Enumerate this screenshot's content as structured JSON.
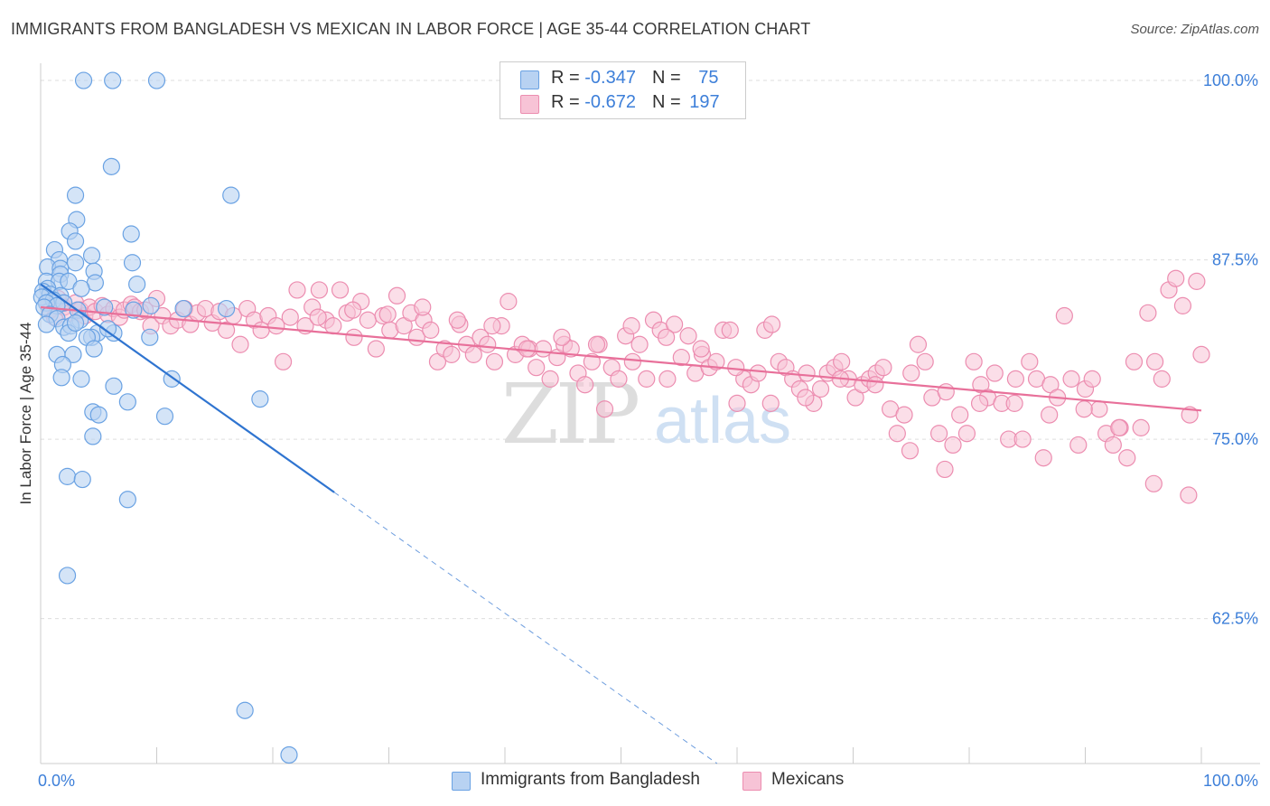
{
  "title": "IMMIGRANTS FROM BANGLADESH VS MEXICAN IN LABOR FORCE | AGE 35-44 CORRELATION CHART",
  "source": "Source: ZipAtlas.com",
  "watermark": {
    "zip": "ZIP",
    "atlas": "atlas"
  },
  "colors": {
    "blue_fill": "#b8d2f2",
    "blue_stroke": "#6aa2e3",
    "blue_line": "#2f74d0",
    "pink_fill": "#f7c3d6",
    "pink_stroke": "#ec8db0",
    "pink_line": "#e8709a",
    "tick_label": "#3d7fd9",
    "grid": "#dddddd"
  },
  "legend": {
    "rows": [
      {
        "r_label": "R = ",
        "r_value": "-0.347",
        "n_label": "N = ",
        "n_value": "75"
      },
      {
        "r_label": "R = ",
        "r_value": "-0.672",
        "n_label": "N = ",
        "n_value": "197"
      }
    ]
  },
  "chart_data": {
    "type": "scatter",
    "title": "IMMIGRANTS FROM BANGLADESH VS MEXICAN IN LABOR FORCE | AGE 35-44 CORRELATION CHART",
    "xlabel": "",
    "ylabel": "In Labor Force | Age 35-44",
    "xlim": [
      0,
      100
    ],
    "ylim": [
      52.4,
      101.2
    ],
    "x_tick_labels": [
      {
        "value": 0,
        "label": "0.0%"
      },
      {
        "value": 100,
        "label": "100.0%"
      }
    ],
    "x_minor_ticks": [
      10,
      20,
      30,
      40,
      50,
      60,
      70,
      80,
      90,
      100
    ],
    "y_ticks": [
      {
        "value": 100,
        "label": "100.0%"
      },
      {
        "value": 87.5,
        "label": "87.5%"
      },
      {
        "value": 75,
        "label": "75.0%"
      },
      {
        "value": 62.5,
        "label": "62.5%"
      }
    ],
    "grid": true,
    "series": [
      {
        "name": "Immigrants from Bangladesh",
        "color": "#6aa2e3",
        "R": -0.347,
        "N": 75,
        "trend": {
          "x0": 0,
          "y0": 85.8,
          "x1": 25.3,
          "y1": 71.3,
          "dashed_to_x": 100
        },
        "points": [
          [
            3.7,
            100
          ],
          [
            6.2,
            100
          ],
          [
            10.0,
            100
          ],
          [
            6.1,
            94
          ],
          [
            3.0,
            92
          ],
          [
            16.4,
            92
          ],
          [
            3.1,
            90.3
          ],
          [
            2.5,
            89.5
          ],
          [
            7.8,
            89.3
          ],
          [
            3.0,
            88.8
          ],
          [
            1.2,
            88.2
          ],
          [
            4.4,
            87.8
          ],
          [
            1.6,
            87.5
          ],
          [
            3.0,
            87.3
          ],
          [
            7.9,
            87.3
          ],
          [
            0.6,
            87.0
          ],
          [
            1.7,
            86.9
          ],
          [
            4.6,
            86.7
          ],
          [
            1.7,
            86.5
          ],
          [
            0.5,
            86.0
          ],
          [
            1.6,
            86.0
          ],
          [
            2.4,
            86.0
          ],
          [
            4.7,
            85.9
          ],
          [
            8.3,
            85.8
          ],
          [
            0.6,
            85.5
          ],
          [
            3.5,
            85.5
          ],
          [
            0.2,
            85.3
          ],
          [
            0.8,
            85.1
          ],
          [
            1.7,
            85.0
          ],
          [
            0.1,
            84.9
          ],
          [
            1.1,
            84.7
          ],
          [
            0.5,
            84.5
          ],
          [
            2.0,
            84.5
          ],
          [
            1.4,
            84.3
          ],
          [
            0.3,
            84.2
          ],
          [
            3.2,
            84.0
          ],
          [
            8.0,
            84.0
          ],
          [
            0.8,
            83.7
          ],
          [
            1.4,
            83.4
          ],
          [
            3.4,
            83.3
          ],
          [
            0.5,
            83.0
          ],
          [
            2.0,
            82.8
          ],
          [
            2.6,
            82.9
          ],
          [
            2.4,
            82.4
          ],
          [
            6.3,
            82.4
          ],
          [
            4.9,
            82.4
          ],
          [
            5.8,
            82.7
          ],
          [
            4.4,
            82.1
          ],
          [
            4.0,
            82.1
          ],
          [
            9.4,
            82.1
          ],
          [
            4.6,
            81.3
          ],
          [
            1.4,
            80.9
          ],
          [
            2.8,
            80.9
          ],
          [
            1.9,
            80.2
          ],
          [
            1.8,
            79.3
          ],
          [
            3.5,
            79.2
          ],
          [
            11.3,
            79.2
          ],
          [
            6.3,
            78.7
          ],
          [
            7.5,
            77.6
          ],
          [
            18.9,
            77.8
          ],
          [
            4.5,
            76.9
          ],
          [
            5.0,
            76.7
          ],
          [
            10.7,
            76.6
          ],
          [
            4.5,
            75.2
          ],
          [
            2.3,
            72.4
          ],
          [
            3.6,
            72.2
          ],
          [
            7.5,
            70.8
          ],
          [
            2.3,
            65.5
          ],
          [
            17.6,
            56.1
          ],
          [
            21.4,
            53.0
          ],
          [
            12.3,
            84.1
          ],
          [
            16.0,
            84.1
          ],
          [
            5.5,
            84.2
          ],
          [
            3.0,
            83.1
          ],
          [
            9.5,
            84.3
          ]
        ]
      },
      {
        "name": "Mexicans",
        "color": "#ec8db0",
        "R": -0.672,
        "N": 197,
        "trend": {
          "x0": 0,
          "y0": 84.2,
          "x1": 100,
          "y1": 77.0
        },
        "points": [
          [
            0.5,
            84.5
          ],
          [
            0.8,
            84.0
          ],
          [
            1.2,
            83.5
          ],
          [
            1.5,
            84.8
          ],
          [
            2.0,
            84.2
          ],
          [
            2.5,
            83.8
          ],
          [
            3.0,
            84.5
          ],
          [
            3.4,
            84.0
          ],
          [
            3.8,
            83.6
          ],
          [
            4.2,
            84.2
          ],
          [
            4.7,
            83.9
          ],
          [
            5.3,
            84.3
          ],
          [
            5.8,
            83.7
          ],
          [
            6.3,
            84.1
          ],
          [
            6.8,
            83.5
          ],
          [
            7.2,
            84.0
          ],
          [
            7.8,
            84.4
          ],
          [
            8.1,
            84.2
          ],
          [
            8.6,
            83.9
          ],
          [
            9.0,
            84.0
          ],
          [
            9.5,
            82.9
          ],
          [
            10.0,
            84.8
          ],
          [
            10.5,
            83.6
          ],
          [
            11.2,
            82.9
          ],
          [
            11.8,
            83.3
          ],
          [
            12.4,
            84.1
          ],
          [
            12.9,
            83.0
          ],
          [
            13.5,
            83.8
          ],
          [
            14.2,
            84.1
          ],
          [
            14.8,
            83.1
          ],
          [
            15.4,
            83.9
          ],
          [
            16.0,
            82.6
          ],
          [
            16.6,
            83.6
          ],
          [
            17.2,
            81.6
          ],
          [
            17.8,
            84.1
          ],
          [
            18.4,
            83.3
          ],
          [
            19.0,
            82.6
          ],
          [
            19.6,
            83.6
          ],
          [
            20.3,
            82.9
          ],
          [
            20.9,
            80.4
          ],
          [
            21.5,
            83.5
          ],
          [
            22.1,
            85.4
          ],
          [
            22.8,
            82.9
          ],
          [
            23.4,
            84.2
          ],
          [
            24.0,
            85.4
          ],
          [
            24.6,
            83.3
          ],
          [
            25.2,
            82.9
          ],
          [
            25.8,
            85.4
          ],
          [
            26.4,
            83.8
          ],
          [
            27.0,
            82.1
          ],
          [
            27.6,
            84.6
          ],
          [
            28.2,
            83.3
          ],
          [
            28.9,
            81.3
          ],
          [
            29.5,
            83.6
          ],
          [
            30.1,
            82.6
          ],
          [
            30.7,
            85.0
          ],
          [
            31.3,
            82.9
          ],
          [
            31.9,
            83.8
          ],
          [
            32.4,
            82.1
          ],
          [
            33.0,
            83.3
          ],
          [
            33.6,
            82.6
          ],
          [
            34.2,
            80.4
          ],
          [
            34.8,
            81.3
          ],
          [
            35.4,
            80.9
          ],
          [
            36.1,
            83.0
          ],
          [
            36.7,
            81.6
          ],
          [
            37.3,
            80.9
          ],
          [
            37.9,
            82.1
          ],
          [
            38.5,
            81.6
          ],
          [
            39.1,
            80.4
          ],
          [
            39.7,
            82.9
          ],
          [
            40.3,
            84.6
          ],
          [
            40.9,
            80.9
          ],
          [
            41.5,
            81.6
          ],
          [
            42.1,
            81.3
          ],
          [
            42.7,
            80.0
          ],
          [
            43.3,
            81.3
          ],
          [
            43.9,
            79.2
          ],
          [
            44.5,
            80.7
          ],
          [
            45.1,
            81.6
          ],
          [
            45.7,
            81.3
          ],
          [
            46.3,
            79.6
          ],
          [
            46.9,
            78.8
          ],
          [
            47.5,
            80.4
          ],
          [
            48.1,
            81.6
          ],
          [
            48.6,
            77.1
          ],
          [
            49.2,
            80.0
          ],
          [
            49.8,
            79.2
          ],
          [
            50.4,
            82.2
          ],
          [
            51.0,
            80.4
          ],
          [
            51.6,
            81.6
          ],
          [
            52.2,
            79.2
          ],
          [
            52.8,
            83.3
          ],
          [
            53.4,
            82.6
          ],
          [
            54.0,
            79.2
          ],
          [
            54.6,
            83.0
          ],
          [
            55.2,
            80.7
          ],
          [
            55.8,
            82.2
          ],
          [
            56.4,
            79.6
          ],
          [
            57.0,
            80.9
          ],
          [
            57.6,
            80.0
          ],
          [
            58.2,
            80.4
          ],
          [
            58.8,
            82.6
          ],
          [
            59.4,
            82.6
          ],
          [
            60.0,
            77.5
          ],
          [
            60.6,
            79.2
          ],
          [
            61.2,
            78.8
          ],
          [
            61.8,
            79.6
          ],
          [
            62.4,
            82.6
          ],
          [
            63.0,
            83.0
          ],
          [
            63.6,
            80.4
          ],
          [
            64.2,
            80.0
          ],
          [
            64.8,
            79.2
          ],
          [
            65.4,
            78.5
          ],
          [
            66.0,
            79.6
          ],
          [
            66.6,
            77.5
          ],
          [
            67.2,
            78.5
          ],
          [
            67.8,
            79.6
          ],
          [
            68.4,
            80.0
          ],
          [
            69.0,
            80.4
          ],
          [
            69.6,
            79.2
          ],
          [
            70.2,
            77.9
          ],
          [
            70.8,
            78.8
          ],
          [
            71.4,
            79.2
          ],
          [
            72.0,
            79.6
          ],
          [
            72.6,
            80.0
          ],
          [
            73.2,
            77.1
          ],
          [
            73.8,
            75.4
          ],
          [
            74.4,
            76.7
          ],
          [
            75.0,
            79.6
          ],
          [
            75.6,
            81.6
          ],
          [
            76.2,
            80.4
          ],
          [
            76.8,
            77.9
          ],
          [
            77.4,
            75.4
          ],
          [
            78.0,
            78.3
          ],
          [
            78.6,
            74.6
          ],
          [
            79.2,
            76.7
          ],
          [
            79.8,
            75.4
          ],
          [
            80.4,
            80.4
          ],
          [
            81.0,
            78.8
          ],
          [
            81.6,
            77.9
          ],
          [
            82.2,
            79.6
          ],
          [
            82.8,
            77.5
          ],
          [
            83.4,
            75.0
          ],
          [
            84.0,
            79.2
          ],
          [
            84.6,
            75.0
          ],
          [
            85.2,
            80.4
          ],
          [
            85.8,
            79.2
          ],
          [
            86.4,
            73.7
          ],
          [
            87.0,
            78.8
          ],
          [
            87.6,
            77.9
          ],
          [
            88.2,
            83.6
          ],
          [
            88.8,
            79.2
          ],
          [
            89.4,
            74.6
          ],
          [
            90.0,
            78.5
          ],
          [
            90.6,
            79.2
          ],
          [
            91.2,
            77.1
          ],
          [
            91.8,
            75.4
          ],
          [
            92.4,
            74.6
          ],
          [
            93.0,
            75.8
          ],
          [
            93.6,
            73.7
          ],
          [
            94.2,
            80.4
          ],
          [
            94.8,
            75.8
          ],
          [
            95.4,
            83.8
          ],
          [
            96.0,
            80.4
          ],
          [
            96.6,
            79.2
          ],
          [
            97.2,
            85.4
          ],
          [
            97.8,
            86.2
          ],
          [
            98.4,
            84.3
          ],
          [
            99.0,
            76.7
          ],
          [
            99.6,
            86.0
          ],
          [
            100.0,
            80.9
          ],
          [
            98.9,
            71.1
          ],
          [
            95.9,
            71.9
          ],
          [
            92.9,
            75.8
          ],
          [
            89.9,
            77.1
          ],
          [
            86.9,
            76.7
          ],
          [
            83.9,
            77.5
          ],
          [
            80.9,
            77.5
          ],
          [
            77.9,
            72.9
          ],
          [
            74.9,
            74.2
          ],
          [
            71.9,
            78.8
          ],
          [
            68.9,
            79.2
          ],
          [
            65.9,
            77.9
          ],
          [
            62.9,
            77.5
          ],
          [
            59.9,
            80.0
          ],
          [
            56.9,
            81.3
          ],
          [
            53.9,
            82.1
          ],
          [
            50.9,
            82.9
          ],
          [
            47.9,
            81.6
          ],
          [
            44.9,
            82.1
          ],
          [
            41.9,
            81.3
          ],
          [
            38.9,
            82.9
          ],
          [
            35.9,
            83.3
          ],
          [
            32.9,
            84.2
          ],
          [
            29.9,
            83.7
          ],
          [
            26.9,
            84.0
          ],
          [
            23.9,
            83.5
          ]
        ]
      }
    ]
  },
  "bottom_legend": [
    {
      "label": "Immigrants from Bangladesh"
    },
    {
      "label": "Mexicans"
    }
  ]
}
